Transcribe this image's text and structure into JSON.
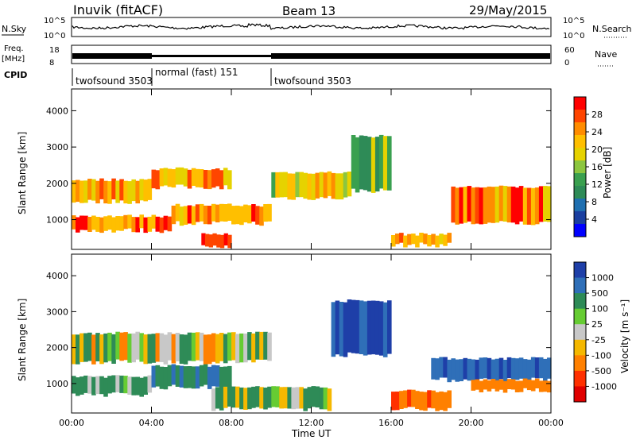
{
  "header": {
    "title": "Inuvik (fitACF)",
    "beam": "Beam 13",
    "date": "29/May/2015"
  },
  "top_panel": {
    "nsky_label": "N.Sky",
    "nsearch_label": "N.Search",
    "freq_label_line1": "Freq.",
    "freq_label_line2": "[MHz]",
    "nave_label": "Nave",
    "cpid_label": "CPID",
    "nsky_ticks": [
      "10^5",
      "10^0"
    ],
    "nsearch_ticks": [
      "10^5",
      "10^0"
    ],
    "freq_ticks": [
      "18",
      "8"
    ],
    "nave_ticks": [
      "60",
      "0"
    ],
    "cpid_segments": [
      {
        "label": "twofsound 3503",
        "start_hour": 0,
        "end_hour": 4
      },
      {
        "label": "normal (fast) 151",
        "start_hour": 4,
        "end_hour": 10
      },
      {
        "label": "twofsound 3503",
        "start_hour": 10,
        "end_hour": 24
      }
    ]
  },
  "power_panel": {
    "ylabel": "Slant Range [km]",
    "colorbar_label": "Power [dB]",
    "colorbar_ticks": [
      "28",
      "24",
      "20",
      "16",
      "12",
      "8",
      "4"
    ],
    "colorbar_colors": [
      "#ff0000",
      "#ff4500",
      "#ff8c00",
      "#ffbf00",
      "#e6d200",
      "#8cc63f",
      "#3aa04f",
      "#2e8b57",
      "#1f6fb0",
      "#1a3fa0",
      "#0000ff"
    ]
  },
  "velocity_panel": {
    "ylabel": "Slant Range [km]",
    "colorbar_label": "Velocity [m s⁻¹]",
    "colorbar_ticks": [
      "1000",
      "500",
      "100",
      "25",
      "-25",
      "-100",
      "-500",
      "-1000"
    ],
    "colorbar_colors": [
      "#1e3fa8",
      "#2f6fb8",
      "#2e8b57",
      "#66cc33",
      "#c8c8c8",
      "#f5b800",
      "#ff8000",
      "#ff3000",
      "#e00000"
    ]
  },
  "x_axis": {
    "label": "Time UT",
    "ticks": [
      "00:00",
      "04:00",
      "08:00",
      "12:00",
      "16:00",
      "20:00",
      "00:00"
    ]
  },
  "chart_data": [
    {
      "type": "heatmap",
      "title": "Inuvik (fitACF) Beam 13 29/May/2015",
      "xlabel": "Time UT",
      "ylabel": "Slant Range [km]",
      "xlim": [
        0,
        24
      ],
      "ylim": [
        180,
        4600
      ],
      "yticks": [
        1000,
        2000,
        3000,
        4000
      ],
      "colorbar": {
        "label": "Power [dB]",
        "ticks": [
          4,
          8,
          12,
          16,
          20,
          24,
          28
        ]
      },
      "bands": [
        {
          "t0": 0,
          "t1": 4,
          "r0": 1500,
          "r1": 2100,
          "level_db": 22
        },
        {
          "t0": 0,
          "t1": 5,
          "r0": 700,
          "r1": 1100,
          "level_db": 26
        },
        {
          "t0": 4,
          "t1": 8,
          "r0": 1900,
          "r1": 2400,
          "level_db": 22
        },
        {
          "t0": 5,
          "t1": 10,
          "r0": 900,
          "r1": 1400,
          "level_db": 24
        },
        {
          "t0": 6.5,
          "t1": 8,
          "r0": 250,
          "r1": 600,
          "level_db": 28
        },
        {
          "t0": 10,
          "t1": 14,
          "r0": 1600,
          "r1": 2300,
          "level_db": 18
        },
        {
          "t0": 14,
          "t1": 16,
          "r0": 1800,
          "r1": 3300,
          "level_db": 14
        },
        {
          "t0": 16,
          "t1": 19,
          "r0": 300,
          "r1": 600,
          "level_db": 24
        },
        {
          "t0": 19,
          "t1": 24,
          "r0": 900,
          "r1": 1900,
          "level_db": 24
        }
      ]
    },
    {
      "type": "heatmap",
      "xlabel": "Time UT",
      "ylabel": "Slant Range [km]",
      "xlim": [
        0,
        24
      ],
      "ylim": [
        180,
        4600
      ],
      "yticks": [
        1000,
        2000,
        3000,
        4000
      ],
      "colorbar": {
        "label": "Velocity [m s⁻¹]",
        "ticks": [
          -1000,
          -500,
          -100,
          -25,
          25,
          100,
          500,
          1000
        ]
      },
      "bands": [
        {
          "t0": 0,
          "t1": 10,
          "r0": 1600,
          "r1": 2400,
          "velocity": 0
        },
        {
          "t0": 0,
          "t1": 4,
          "r0": 700,
          "r1": 1200,
          "velocity": 150
        },
        {
          "t0": 4,
          "t1": 8,
          "r0": 900,
          "r1": 1500,
          "velocity": 300
        },
        {
          "t0": 7,
          "t1": 13,
          "r0": 300,
          "r1": 900,
          "velocity": 80
        },
        {
          "t0": 13,
          "t1": 16,
          "r0": 1800,
          "r1": 3300,
          "velocity": 700
        },
        {
          "t0": 16,
          "t1": 19,
          "r0": 300,
          "r1": 800,
          "velocity": -400
        },
        {
          "t0": 18,
          "t1": 24,
          "r0": 1100,
          "r1": 1700,
          "velocity": 600
        },
        {
          "t0": 20,
          "t1": 24,
          "r0": 800,
          "r1": 1100,
          "velocity": -300
        }
      ]
    }
  ]
}
